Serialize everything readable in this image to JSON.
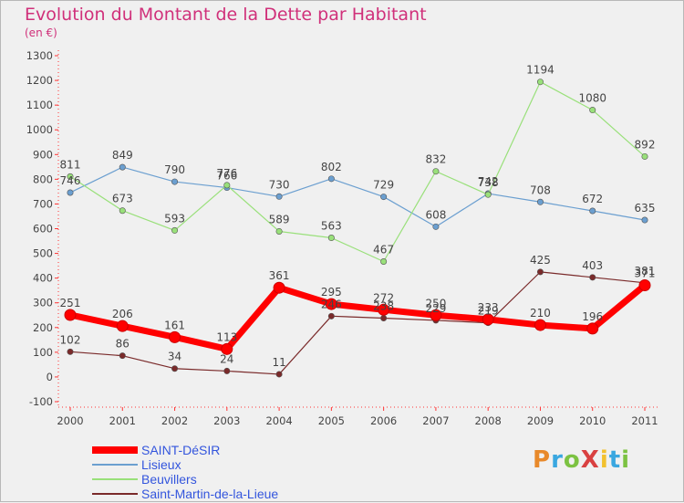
{
  "title": "Evolution du Montant de la Dette par Habitant",
  "subtitle": "(en €)",
  "logo": {
    "text": "ProXiti",
    "colors": [
      "#e8892a",
      "#3aa7e0",
      "#7cc242",
      "#d94141",
      "#f2c12e",
      "#3aa7e0",
      "#7cc242"
    ]
  },
  "chart_data": {
    "type": "line",
    "x": [
      "2000",
      "2001",
      "2002",
      "2003",
      "2004",
      "2005",
      "2006",
      "2007",
      "2008",
      "2009",
      "2010",
      "2011"
    ],
    "ylim": [
      -100,
      1300
    ],
    "yticks": [
      -100,
      0,
      100,
      200,
      300,
      400,
      500,
      600,
      700,
      800,
      900,
      1000,
      1100,
      1200,
      1300
    ],
    "grid": false,
    "legend": "bottom-left",
    "series": [
      {
        "name": "SAINT-DéSIR",
        "color": "#ff0000",
        "width": 7,
        "marker": 6,
        "values": [
          251,
          206,
          161,
          113,
          361,
          295,
          272,
          250,
          233,
          210,
          196,
          371
        ]
      },
      {
        "name": "Lisieux",
        "color": "#6b9fd0",
        "width": 1.2,
        "marker": 3.2,
        "values": [
          746,
          849,
          790,
          766,
          730,
          802,
          729,
          608,
          742,
          708,
          672,
          635
        ]
      },
      {
        "name": "Beuvillers",
        "color": "#99e07a",
        "width": 1.2,
        "marker": 3.2,
        "values": [
          811,
          673,
          593,
          776,
          589,
          563,
          467,
          832,
          738,
          1194,
          1080,
          892
        ]
      },
      {
        "name": "Saint-Martin-de-la-Lieue",
        "color": "#7a2a2a",
        "width": 1.2,
        "marker": 3.2,
        "values": [
          102,
          86,
          34,
          24,
          11,
          246,
          238,
          229,
          219,
          425,
          403,
          381
        ]
      }
    ]
  }
}
